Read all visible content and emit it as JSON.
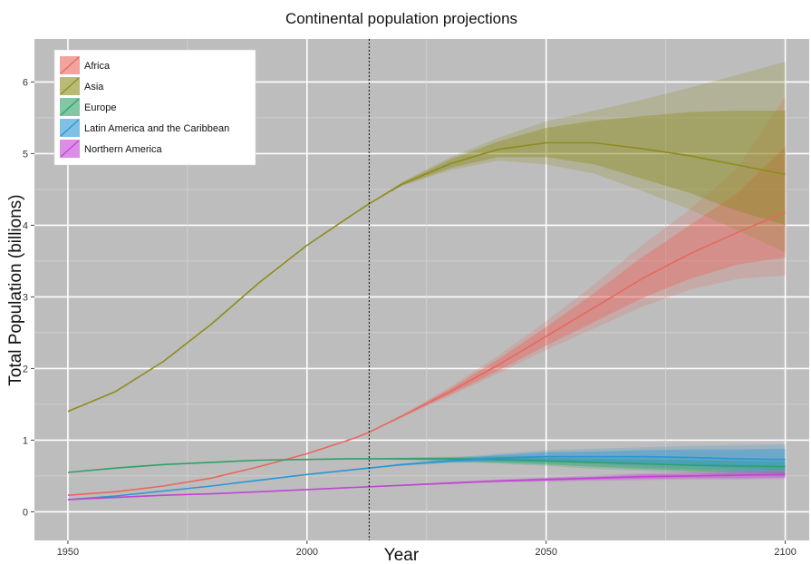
{
  "chart_data": {
    "type": "line",
    "title": "Continental population projections",
    "xlabel": "Year",
    "ylabel": "Total Population (billions)",
    "xlim": [
      1943,
      2105
    ],
    "ylim": [
      -0.4,
      6.6
    ],
    "xticks": [
      1950,
      2000,
      2050,
      2100
    ],
    "yticks": [
      0,
      1,
      2,
      3,
      4,
      5,
      6
    ],
    "grid": true,
    "legend_position": "top-left",
    "vline_x": 2013,
    "projection_start": 2013,
    "series": [
      {
        "name": "Africa",
        "color": "#e8675e",
        "x": [
          1950,
          1960,
          1970,
          1980,
          1990,
          2000,
          2010,
          2013,
          2020,
          2030,
          2040,
          2050,
          2060,
          2070,
          2080,
          2090,
          2100
        ],
        "values": [
          0.23,
          0.28,
          0.36,
          0.47,
          0.63,
          0.81,
          1.03,
          1.11,
          1.34,
          1.68,
          2.05,
          2.45,
          2.85,
          3.25,
          3.6,
          3.9,
          4.18
        ],
        "band80": [
          [
            1.11,
            1.11
          ],
          [
            1.33,
            1.35
          ],
          [
            1.64,
            1.72
          ],
          [
            1.97,
            2.13
          ],
          [
            2.32,
            2.58
          ],
          [
            2.65,
            3.05
          ],
          [
            2.98,
            3.55
          ],
          [
            3.25,
            4.0
          ],
          [
            3.45,
            4.45
          ],
          [
            3.55,
            5.1
          ]
        ],
        "band95": [
          [
            1.11,
            1.11
          ],
          [
            1.32,
            1.36
          ],
          [
            1.62,
            1.75
          ],
          [
            1.93,
            2.18
          ],
          [
            2.26,
            2.66
          ],
          [
            2.56,
            3.17
          ],
          [
            2.86,
            3.72
          ],
          [
            3.1,
            4.22
          ],
          [
            3.25,
            4.8
          ],
          [
            3.3,
            5.8
          ]
        ]
      },
      {
        "name": "Asia",
        "color": "#8c8c1c",
        "x": [
          1950,
          1960,
          1970,
          1980,
          1990,
          2000,
          2010,
          2013,
          2020,
          2030,
          2040,
          2050,
          2060,
          2070,
          2080,
          2090,
          2100
        ],
        "values": [
          1.4,
          1.68,
          2.1,
          2.62,
          3.2,
          3.72,
          4.17,
          4.3,
          4.58,
          4.86,
          5.06,
          5.15,
          5.15,
          5.07,
          4.97,
          4.84,
          4.71
        ],
        "band80": [
          [
            4.3,
            4.3
          ],
          [
            4.56,
            4.6
          ],
          [
            4.8,
            4.92
          ],
          [
            4.95,
            5.17
          ],
          [
            4.95,
            5.36
          ],
          [
            4.85,
            5.46
          ],
          [
            4.65,
            5.52
          ],
          [
            4.45,
            5.58
          ],
          [
            4.2,
            5.6
          ],
          [
            4.0,
            5.6
          ]
        ],
        "band95": [
          [
            4.3,
            4.3
          ],
          [
            4.55,
            4.61
          ],
          [
            4.77,
            4.95
          ],
          [
            4.9,
            5.22
          ],
          [
            4.85,
            5.45
          ],
          [
            4.72,
            5.6
          ],
          [
            4.48,
            5.75
          ],
          [
            4.22,
            5.92
          ],
          [
            3.93,
            6.1
          ],
          [
            3.62,
            6.28
          ]
        ]
      },
      {
        "name": "Europe",
        "color": "#2ba268",
        "x": [
          1950,
          1960,
          1970,
          1980,
          1990,
          2000,
          2010,
          2013,
          2020,
          2030,
          2040,
          2050,
          2060,
          2070,
          2080,
          2090,
          2100
        ],
        "values": [
          0.55,
          0.61,
          0.66,
          0.69,
          0.72,
          0.73,
          0.74,
          0.74,
          0.74,
          0.74,
          0.73,
          0.71,
          0.69,
          0.67,
          0.65,
          0.64,
          0.63
        ],
        "band80": [
          [
            0.74,
            0.74
          ],
          [
            0.73,
            0.75
          ],
          [
            0.72,
            0.76
          ],
          [
            0.69,
            0.76
          ],
          [
            0.66,
            0.75
          ],
          [
            0.63,
            0.74
          ],
          [
            0.6,
            0.73
          ],
          [
            0.57,
            0.72
          ],
          [
            0.55,
            0.71
          ],
          [
            0.53,
            0.7
          ]
        ],
        "band95": [
          [
            0.74,
            0.74
          ],
          [
            0.72,
            0.76
          ],
          [
            0.7,
            0.77
          ],
          [
            0.67,
            0.78
          ],
          [
            0.64,
            0.78
          ],
          [
            0.6,
            0.77
          ],
          [
            0.57,
            0.76
          ],
          [
            0.54,
            0.75
          ],
          [
            0.51,
            0.74
          ],
          [
            0.49,
            0.73
          ]
        ]
      },
      {
        "name": "Latin America and the Caribbean",
        "color": "#2a96d4",
        "x": [
          1950,
          1960,
          1970,
          1980,
          1990,
          2000,
          2010,
          2013,
          2020,
          2030,
          2040,
          2050,
          2060,
          2070,
          2080,
          2090,
          2100
        ],
        "values": [
          0.17,
          0.22,
          0.29,
          0.36,
          0.44,
          0.52,
          0.59,
          0.61,
          0.66,
          0.71,
          0.75,
          0.77,
          0.77,
          0.77,
          0.76,
          0.74,
          0.73
        ],
        "band80": [
          [
            0.61,
            0.61
          ],
          [
            0.65,
            0.67
          ],
          [
            0.69,
            0.73
          ],
          [
            0.71,
            0.79
          ],
          [
            0.71,
            0.83
          ],
          [
            0.7,
            0.84
          ],
          [
            0.67,
            0.86
          ],
          [
            0.64,
            0.87
          ],
          [
            0.61,
            0.87
          ],
          [
            0.58,
            0.88
          ]
        ],
        "band95": [
          [
            0.61,
            0.61
          ],
          [
            0.64,
            0.68
          ],
          [
            0.68,
            0.75
          ],
          [
            0.69,
            0.81
          ],
          [
            0.69,
            0.86
          ],
          [
            0.67,
            0.88
          ],
          [
            0.63,
            0.9
          ],
          [
            0.6,
            0.92
          ],
          [
            0.57,
            0.93
          ],
          [
            0.54,
            0.94
          ]
        ]
      },
      {
        "name": "Northern America",
        "color": "#c243d6",
        "x": [
          1950,
          1960,
          1970,
          1980,
          1990,
          2000,
          2010,
          2013,
          2020,
          2030,
          2040,
          2050,
          2060,
          2070,
          2080,
          2090,
          2100
        ],
        "values": [
          0.17,
          0.2,
          0.23,
          0.25,
          0.28,
          0.31,
          0.34,
          0.35,
          0.37,
          0.4,
          0.43,
          0.45,
          0.47,
          0.49,
          0.5,
          0.51,
          0.52
        ],
        "band80": [
          [
            0.35,
            0.35
          ],
          [
            0.37,
            0.38
          ],
          [
            0.39,
            0.41
          ],
          [
            0.42,
            0.44
          ],
          [
            0.43,
            0.47
          ],
          [
            0.45,
            0.49
          ],
          [
            0.46,
            0.52
          ],
          [
            0.47,
            0.53
          ],
          [
            0.47,
            0.55
          ],
          [
            0.48,
            0.56
          ]
        ],
        "band95": [
          [
            0.35,
            0.35
          ],
          [
            0.36,
            0.38
          ],
          [
            0.39,
            0.42
          ],
          [
            0.41,
            0.45
          ],
          [
            0.42,
            0.48
          ],
          [
            0.43,
            0.51
          ],
          [
            0.44,
            0.54
          ],
          [
            0.45,
            0.56
          ],
          [
            0.45,
            0.58
          ],
          [
            0.46,
            0.6
          ]
        ]
      }
    ]
  }
}
